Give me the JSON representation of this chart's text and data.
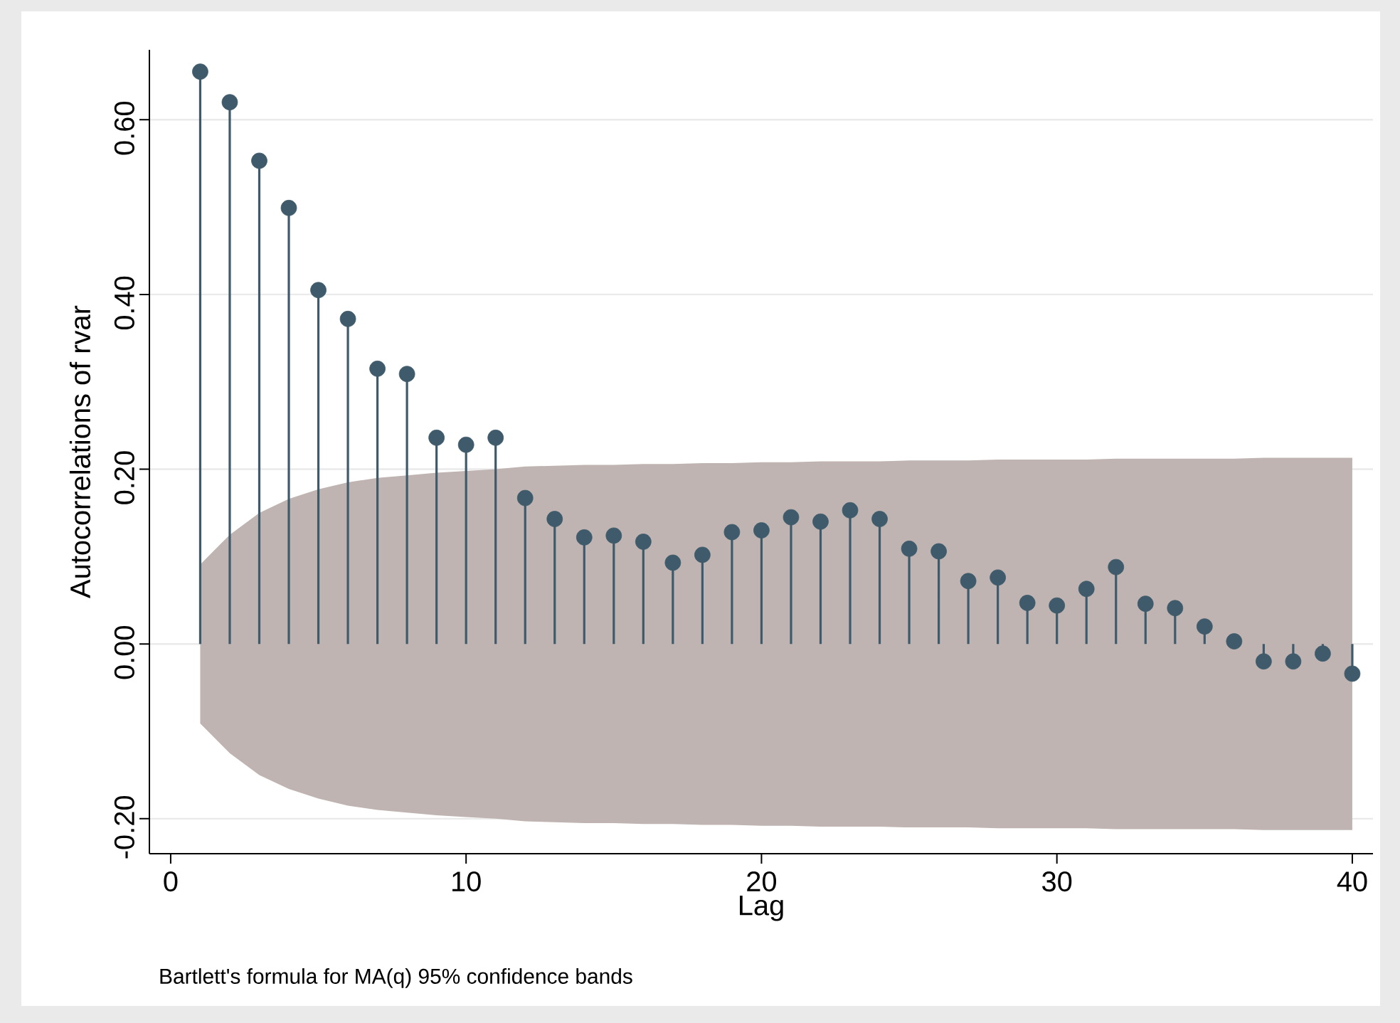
{
  "chart_data": {
    "type": "lollipop",
    "xlabel": "Lag",
    "ylabel": "Autocorrelations of rvar",
    "annotations": [
      "Bartlett's formula for MA(q) 95% confidence bands"
    ],
    "x": [
      1,
      2,
      3,
      4,
      5,
      6,
      7,
      8,
      9,
      10,
      11,
      12,
      13,
      14,
      15,
      16,
      17,
      18,
      19,
      20,
      21,
      22,
      23,
      24,
      25,
      26,
      27,
      28,
      29,
      30,
      31,
      32,
      33,
      34,
      35,
      36,
      37,
      38,
      39,
      40
    ],
    "series": [
      {
        "type": "area",
        "color": "#bfb4b1",
        "values": [
          null,
          null,
          null,
          null,
          null,
          null,
          null,
          null,
          null,
          null,
          null,
          null,
          null,
          null,
          null,
          null,
          null,
          null,
          null,
          null,
          null,
          null,
          null,
          null,
          null,
          null,
          null,
          null,
          null,
          null,
          null,
          null,
          null,
          null,
          null,
          null,
          null,
          null,
          null,
          null
        ],
        "lower": [
          -0.091,
          -0.125,
          -0.15,
          -0.166,
          -0.177,
          -0.185,
          -0.19,
          -0.193,
          -0.196,
          -0.198,
          -0.2,
          -0.203,
          -0.204,
          -0.205,
          -0.205,
          -0.206,
          -0.206,
          -0.207,
          -0.207,
          -0.208,
          -0.208,
          -0.209,
          -0.209,
          -0.209,
          -0.21,
          -0.21,
          -0.21,
          -0.211,
          -0.211,
          -0.211,
          -0.211,
          -0.212,
          -0.212,
          -0.212,
          -0.212,
          -0.212,
          -0.213,
          -0.213,
          -0.213,
          -0.213
        ],
        "upper": [
          0.091,
          0.125,
          0.15,
          0.166,
          0.177,
          0.185,
          0.19,
          0.193,
          0.196,
          0.198,
          0.2,
          0.203,
          0.204,
          0.205,
          0.205,
          0.206,
          0.206,
          0.207,
          0.207,
          0.208,
          0.208,
          0.209,
          0.209,
          0.209,
          0.21,
          0.21,
          0.21,
          0.211,
          0.211,
          0.211,
          0.211,
          0.212,
          0.212,
          0.212,
          0.212,
          0.212,
          0.213,
          0.213,
          0.213,
          0.213
        ]
      },
      {
        "color": "#3e5a6b",
        "values": [
          0.655,
          0.62,
          0.553,
          0.499,
          0.405,
          0.372,
          0.315,
          0.309,
          0.236,
          0.228,
          0.236,
          0.167,
          0.143,
          0.122,
          0.124,
          0.117,
          0.093,
          0.102,
          0.128,
          0.13,
          0.145,
          0.14,
          0.153,
          0.143,
          0.109,
          0.106,
          0.072,
          0.076,
          0.047,
          0.044,
          0.063,
          0.088,
          0.046,
          0.041,
          0.02,
          0.003,
          -0.02,
          -0.02,
          -0.011,
          -0.034
        ]
      }
    ],
    "xlim": [
      -0.72,
      40.7
    ],
    "ylim": [
      -0.24,
      0.68
    ],
    "xticks": [
      0,
      10,
      20,
      30,
      40
    ],
    "yticks": [
      {
        "value": -0.2,
        "label": "-0.20"
      },
      {
        "value": 0,
        "label": "0.00"
      },
      {
        "value": 0.2,
        "label": "0.20"
      },
      {
        "value": 0.4,
        "label": "0.40"
      },
      {
        "value": 0.6,
        "label": "0.60"
      }
    ],
    "grid": "y",
    "marker": "circle"
  }
}
